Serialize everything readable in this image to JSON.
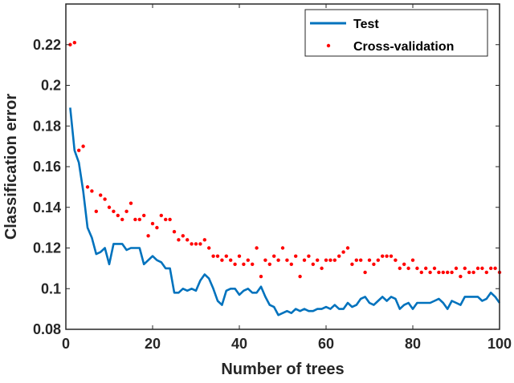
{
  "chart_data": {
    "type": "line",
    "xlabel": "Number of trees",
    "ylabel": "Classification error",
    "xlim": [
      0,
      100
    ],
    "ylim": [
      0.08,
      0.24
    ],
    "xticks": [
      0,
      20,
      40,
      60,
      80,
      100
    ],
    "yticks": [
      0.08,
      0.1,
      0.12,
      0.14,
      0.16,
      0.18,
      0.2,
      0.22
    ],
    "ytick_labels": [
      "0.08",
      "0.1",
      "0.12",
      "0.14",
      "0.16",
      "0.18",
      "0.2",
      "0.22"
    ],
    "legend_position": "top-right",
    "series": [
      {
        "name": "Test",
        "style": "line",
        "color": "#0072BD",
        "x": [
          1,
          2,
          3,
          4,
          5,
          6,
          7,
          8,
          9,
          10,
          11,
          12,
          13,
          14,
          15,
          16,
          17,
          18,
          19,
          20,
          21,
          22,
          23,
          24,
          25,
          26,
          27,
          28,
          29,
          30,
          31,
          32,
          33,
          34,
          35,
          36,
          37,
          38,
          39,
          40,
          41,
          42,
          43,
          44,
          45,
          46,
          47,
          48,
          49,
          50,
          51,
          52,
          53,
          54,
          55,
          56,
          57,
          58,
          59,
          60,
          61,
          62,
          63,
          64,
          65,
          66,
          67,
          68,
          69,
          70,
          71,
          72,
          73,
          74,
          75,
          76,
          77,
          78,
          79,
          80,
          81,
          82,
          83,
          84,
          85,
          86,
          87,
          88,
          89,
          90,
          91,
          92,
          93,
          94,
          95,
          96,
          97,
          98,
          99,
          100
        ],
        "values": [
          0.189,
          0.168,
          0.162,
          0.148,
          0.13,
          0.125,
          0.117,
          0.118,
          0.12,
          0.112,
          0.122,
          0.122,
          0.122,
          0.119,
          0.12,
          0.12,
          0.12,
          0.112,
          0.114,
          0.116,
          0.114,
          0.113,
          0.11,
          0.11,
          0.098,
          0.098,
          0.1,
          0.099,
          0.1,
          0.099,
          0.104,
          0.107,
          0.105,
          0.1,
          0.094,
          0.092,
          0.099,
          0.1,
          0.1,
          0.097,
          0.099,
          0.1,
          0.098,
          0.098,
          0.101,
          0.096,
          0.092,
          0.091,
          0.087,
          0.088,
          0.089,
          0.088,
          0.09,
          0.089,
          0.09,
          0.089,
          0.089,
          0.09,
          0.09,
          0.091,
          0.09,
          0.092,
          0.09,
          0.09,
          0.093,
          0.091,
          0.092,
          0.095,
          0.096,
          0.093,
          0.092,
          0.094,
          0.096,
          0.094,
          0.096,
          0.095,
          0.09,
          0.092,
          0.093,
          0.09,
          0.093,
          0.093,
          0.093,
          0.093,
          0.094,
          0.095,
          0.093,
          0.09,
          0.094,
          0.093,
          0.092,
          0.096,
          0.096,
          0.096,
          0.096,
          0.094,
          0.095,
          0.098,
          0.096,
          0.093
        ]
      },
      {
        "name": "Cross-validation",
        "style": "markers",
        "color": "#FF0000",
        "x": [
          1,
          2,
          3,
          4,
          5,
          6,
          7,
          8,
          9,
          10,
          11,
          12,
          13,
          14,
          15,
          16,
          17,
          18,
          19,
          20,
          21,
          22,
          23,
          24,
          25,
          26,
          27,
          28,
          29,
          30,
          31,
          32,
          33,
          34,
          35,
          36,
          37,
          38,
          39,
          40,
          41,
          42,
          43,
          44,
          45,
          46,
          47,
          48,
          49,
          50,
          51,
          52,
          53,
          54,
          55,
          56,
          57,
          58,
          59,
          60,
          61,
          62,
          63,
          64,
          65,
          66,
          67,
          68,
          69,
          70,
          71,
          72,
          73,
          74,
          75,
          76,
          77,
          78,
          79,
          80,
          81,
          82,
          83,
          84,
          85,
          86,
          87,
          88,
          89,
          90,
          91,
          92,
          93,
          94,
          95,
          96,
          97,
          98,
          99,
          100
        ],
        "values": [
          0.22,
          0.221,
          0.168,
          0.17,
          0.15,
          0.148,
          0.138,
          0.146,
          0.144,
          0.14,
          0.138,
          0.136,
          0.134,
          0.138,
          0.142,
          0.134,
          0.134,
          0.136,
          0.126,
          0.132,
          0.13,
          0.136,
          0.134,
          0.134,
          0.128,
          0.124,
          0.126,
          0.124,
          0.122,
          0.122,
          0.122,
          0.124,
          0.12,
          0.116,
          0.116,
          0.114,
          0.116,
          0.114,
          0.112,
          0.116,
          0.112,
          0.114,
          0.112,
          0.12,
          0.106,
          0.114,
          0.112,
          0.116,
          0.114,
          0.12,
          0.114,
          0.112,
          0.116,
          0.106,
          0.114,
          0.116,
          0.112,
          0.114,
          0.11,
          0.114,
          0.114,
          0.114,
          0.116,
          0.118,
          0.12,
          0.112,
          0.114,
          0.114,
          0.108,
          0.114,
          0.112,
          0.114,
          0.116,
          0.116,
          0.116,
          0.114,
          0.11,
          0.112,
          0.11,
          0.114,
          0.11,
          0.108,
          0.11,
          0.108,
          0.11,
          0.108,
          0.108,
          0.108,
          0.108,
          0.11,
          0.106,
          0.11,
          0.108,
          0.108,
          0.11,
          0.11,
          0.108,
          0.11,
          0.11,
          0.108
        ]
      }
    ]
  }
}
